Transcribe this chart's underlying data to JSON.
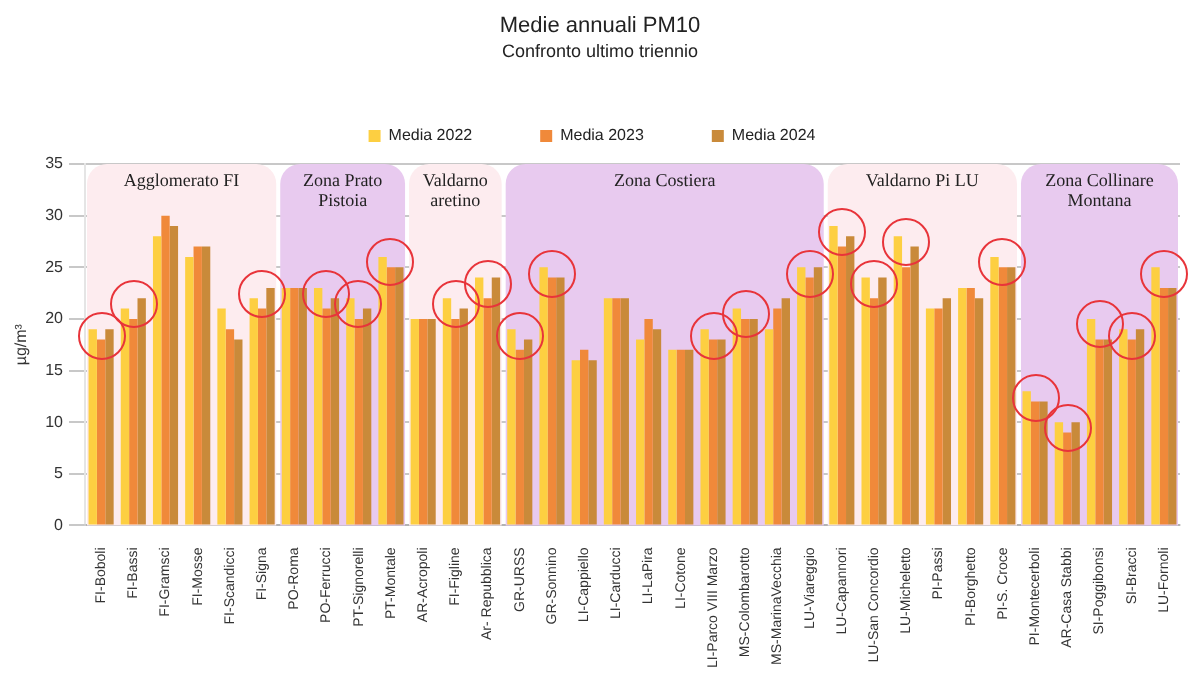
{
  "chart_data": {
    "type": "bar",
    "title": "Medie annuali PM10",
    "subtitle": "Confronto ultimo triennio",
    "ylabel": "µg/m³",
    "categories": [
      "FI-Boboli",
      "FI-Bassi",
      "FI-Gramsci",
      "FI-Mosse",
      "FI-Scandicci",
      "FI-Signa",
      "PO-Roma",
      "PO-Ferrucci",
      "PT-Signorelli",
      "PT-Montale",
      "AR-Acropoli",
      "FI-Figline",
      "Ar- Repubblica",
      "GR-URSS",
      "GR-Sonnino",
      "LI-Cappiello",
      "LI-Carducci",
      "LI-LaPira",
      "LI-Cotone",
      "LI-Parco VIII Marzo",
      "MS-Colombarotto",
      "MS-MarinaVecchia",
      "LU-Viareggio",
      "LU-Capannori",
      "LU-San Concordio",
      "LU-Micheletto",
      "PI-Passi",
      "PI-Borghetto",
      "PI-S. Croce",
      "PI-Montecerboli",
      "AR-Casa Stabbi",
      "SI-Poggibonsi",
      "SI-Bracci",
      "LU-Fornoli"
    ],
    "series": [
      {
        "name": "Media 2022",
        "color": "#fdcf41",
        "values": [
          19,
          21,
          28,
          26,
          21,
          22,
          23,
          23,
          22,
          26,
          20,
          22,
          24,
          19,
          25,
          16,
          22,
          18,
          17,
          19,
          21,
          19,
          25,
          29,
          24,
          28,
          21,
          23,
          26,
          13,
          10,
          20,
          19,
          25
        ]
      },
      {
        "name": "Media 2023",
        "color": "#f0893a",
        "values": [
          18,
          20,
          30,
          27,
          19,
          21,
          23,
          21,
          20,
          25,
          20,
          20,
          22,
          17,
          24,
          17,
          22,
          20,
          17,
          18,
          20,
          21,
          24,
          27,
          22,
          25,
          21,
          23,
          25,
          12,
          9,
          18,
          18,
          23
        ]
      },
      {
        "name": "Media 2024",
        "color": "#c98a3a",
        "values": [
          19,
          22,
          29,
          27,
          18,
          23,
          23,
          22,
          21,
          25,
          20,
          21,
          24,
          18,
          24,
          16,
          22,
          19,
          17,
          18,
          20,
          22,
          25,
          28,
          24,
          27,
          22,
          22,
          25,
          12,
          10,
          18,
          19,
          23
        ]
      }
    ],
    "bands": [
      {
        "axis": "x",
        "from": "FI-Boboli",
        "to": "FI-Signa",
        "label": "Agglomerato FI",
        "color": "#fdecef"
      },
      {
        "axis": "x",
        "from": "PO-Roma",
        "to": "PT-Montale",
        "label": "Zona Prato Pistoia",
        "color": "#e8caef"
      },
      {
        "axis": "x",
        "from": "AR-Acropoli",
        "to": "Ar- Repubblica",
        "label": "Valdarno aretino",
        "color": "#fdecef"
      },
      {
        "axis": "x",
        "from": "GR-URSS",
        "to": "LU-Viareggio",
        "label": "Zona Costiera",
        "color": "#e8caef"
      },
      {
        "axis": "x",
        "from": "LU-Capannori",
        "to": "PI-S. Croce",
        "label": "Valdarno Pi LU",
        "color": "#fdecef"
      },
      {
        "axis": "x",
        "from": "PI-Montecerboli",
        "to": "LU-Fornoli",
        "label": "Zona Collinare Montana",
        "color": "#e8caef"
      }
    ],
    "ylim": [
      0,
      35
    ],
    "yticks": [
      0,
      5,
      10,
      15,
      20,
      25,
      30,
      35
    ],
    "grid": "y",
    "legend": "top"
  }
}
